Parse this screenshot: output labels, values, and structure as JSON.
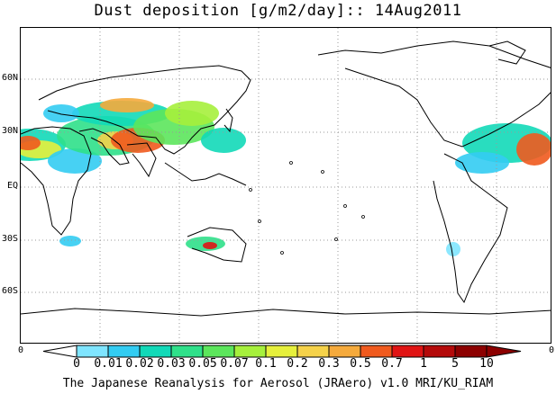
{
  "title": "Dust deposition [g/m2/day]:: 14Aug2011",
  "credit": "The Japanese Reanalysis for Aerosol (JRAero) v1.0 MRI/KU_RIAM",
  "lat_labels": [
    "60N",
    "30N",
    "EQ",
    "30S",
    "60S"
  ],
  "edge_labels": {
    "left": "0",
    "right": "0"
  },
  "colorbar": {
    "labels": [
      "0",
      "0.01",
      "0.02",
      "0.03",
      "0.05",
      "0.07",
      "0.1",
      "0.2",
      "0.3",
      "0.5",
      "0.7",
      "1",
      "5",
      "10"
    ],
    "colors": [
      "#ffffff",
      "#7fe5ff",
      "#33ccf2",
      "#12d9b8",
      "#2fe08a",
      "#5ce65c",
      "#a6f03c",
      "#e6f03c",
      "#f5d24a",
      "#f5aa3c",
      "#f05a1e",
      "#e01414",
      "#b40a0a",
      "#8c0000",
      "#8c0000"
    ]
  },
  "map": {
    "projection": "equirectangular, 0E centered to 360E",
    "grid": "dotted 30-degree",
    "region_cover": "land outlines, coastline sketch",
    "dust_regions": [
      "Sahara/West Africa",
      "Arabian Peninsula",
      "Middle East",
      "Central Asia",
      "Taklimakan/Gobi",
      "Australia interior",
      "Caribbean/Atlantic plume",
      "Patagonia"
    ]
  }
}
